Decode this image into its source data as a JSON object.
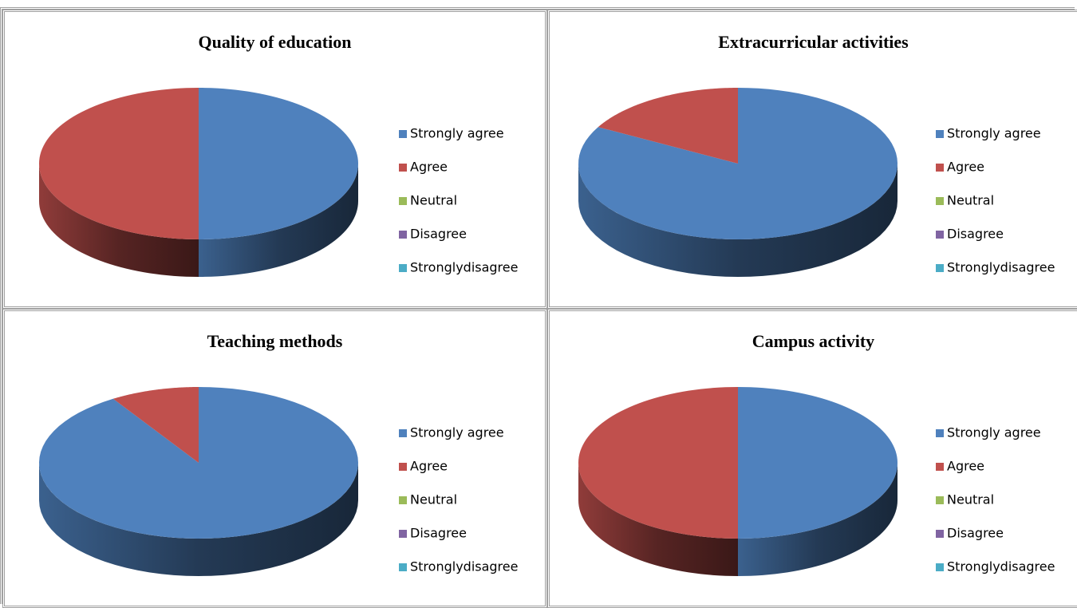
{
  "chart_data": [
    {
      "type": "pie",
      "title": "Quality of education",
      "categories": [
        "Strongly agree",
        "Agree",
        "Neutral",
        "Disagree",
        "Stronglydisagree"
      ],
      "values": [
        50,
        50,
        0,
        0,
        0
      ],
      "colors": [
        "#4f81bd",
        "#c0504d",
        "#9bbb59",
        "#8064a2",
        "#4bacc6"
      ]
    },
    {
      "type": "pie",
      "title": "Extracurricular activities",
      "categories": [
        "Strongly agree",
        "Agree",
        "Neutral",
        "Disagree",
        "Stronglydisagree"
      ],
      "values": [
        83,
        17,
        0,
        0,
        0
      ],
      "colors": [
        "#4f81bd",
        "#c0504d",
        "#9bbb59",
        "#8064a2",
        "#4bacc6"
      ]
    },
    {
      "type": "pie",
      "title": "Teaching methods",
      "categories": [
        "Strongly agree",
        "Agree",
        "Neutral",
        "Disagree",
        "Stronglydisagree"
      ],
      "values": [
        91,
        9,
        0,
        0,
        0
      ],
      "colors": [
        "#4f81bd",
        "#c0504d",
        "#9bbb59",
        "#8064a2",
        "#4bacc6"
      ]
    },
    {
      "type": "pie",
      "title": "Campus activity",
      "categories": [
        "Strongly agree",
        "Agree",
        "Neutral",
        "Disagree",
        "Stronglydisagree"
      ],
      "values": [
        50,
        50,
        0,
        0,
        0
      ],
      "colors": [
        "#4f81bd",
        "#c0504d",
        "#9bbb59",
        "#8064a2",
        "#4bacc6"
      ]
    }
  ]
}
